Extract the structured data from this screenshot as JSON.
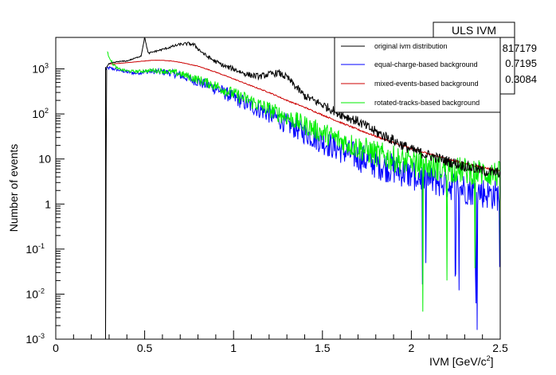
{
  "chart_data": {
    "type": "line",
    "xlabel": "IVM [GeV/c",
    "xlabel_sup": "2",
    "xlabel_tail": "]",
    "ylabel": "Number of events",
    "xlim": [
      0,
      2.5
    ],
    "ylim": [
      0.001,
      5000
    ],
    "yscale": "log",
    "x_ticks": [
      "0",
      "0.5",
      "1",
      "1.5",
      "2",
      "2.5"
    ],
    "y_ticks": [
      {
        "base": "10",
        "exp": "-3"
      },
      {
        "base": "10",
        "exp": "-2"
      },
      {
        "base": "10",
        "exp": "-1"
      },
      {
        "base": "1",
        "exp": ""
      },
      {
        "base": "10",
        "exp": ""
      },
      {
        "base": "10",
        "exp": "2"
      },
      {
        "base": "10",
        "exp": "3"
      }
    ],
    "legend_position": "top-right",
    "stats_box": {
      "title": "ULS IVM",
      "values": [
        "817179",
        "0.7195",
        "0.3084"
      ]
    },
    "series": [
      {
        "name": "original ivm distribution",
        "color": "#000000",
        "x": [
          0.28,
          0.285,
          0.3,
          0.35,
          0.4,
          0.45,
          0.48,
          0.5,
          0.52,
          0.55,
          0.6,
          0.65,
          0.7,
          0.75,
          0.78,
          0.8,
          0.85,
          0.9,
          0.95,
          1.0,
          1.05,
          1.1,
          1.15,
          1.2,
          1.25,
          1.3,
          1.35,
          1.4,
          1.5,
          1.6,
          1.7,
          1.8,
          1.9,
          2.0,
          2.1,
          2.2,
          2.3,
          2.4,
          2.45,
          2.5
        ],
        "y": [
          0.001,
          1100,
          1300,
          1450,
          1500,
          1750,
          1950,
          5000,
          2200,
          2400,
          2700,
          3100,
          3500,
          3650,
          3400,
          2800,
          1900,
          1450,
          1150,
          1000,
          820,
          720,
          680,
          760,
          820,
          650,
          400,
          250,
          160,
          100,
          68,
          40,
          26,
          16,
          12,
          9,
          7,
          5.5,
          5,
          5
        ]
      },
      {
        "name": "equal-charge-based background",
        "color": "#0000ff",
        "x": [
          0.28,
          0.3,
          0.35,
          0.4,
          0.45,
          0.5,
          0.55,
          0.6,
          0.65,
          0.7,
          0.8,
          0.9,
          1.0,
          1.1,
          1.2,
          1.3,
          1.4,
          1.5,
          1.6,
          1.7,
          1.8,
          1.9,
          2.0,
          2.1,
          2.2,
          2.3,
          2.4,
          2.5
        ],
        "y": [
          1000,
          1050,
          950,
          850,
          800,
          860,
          880,
          860,
          810,
          720,
          520,
          370,
          230,
          150,
          100,
          60,
          38,
          24,
          16,
          11,
          8,
          6,
          4.5,
          3.5,
          2.8,
          2.2,
          1.8,
          1.5
        ]
      },
      {
        "name": "mixed-events-based background",
        "color": "#cc0000",
        "x": [
          0.3,
          0.33,
          0.4,
          0.5,
          0.55,
          0.6,
          0.65,
          0.7,
          0.8,
          0.9,
          1.0,
          1.1,
          1.2,
          1.3,
          1.4,
          1.5,
          1.6,
          1.7,
          1.8,
          1.9,
          2.0,
          2.1,
          2.2,
          2.3,
          2.4,
          2.5
        ],
        "y": [
          1300,
          1300,
          1370,
          1500,
          1560,
          1550,
          1500,
          1400,
          1150,
          850,
          600,
          420,
          300,
          200,
          140,
          95,
          65,
          45,
          32,
          23,
          17,
          13,
          10,
          8,
          6.5,
          5.5
        ]
      },
      {
        "name": "rotated-tracks-based background",
        "color": "#00ee00",
        "x": [
          0.29,
          0.32,
          0.35,
          0.4,
          0.45,
          0.5,
          0.55,
          0.6,
          0.65,
          0.7,
          0.8,
          0.9,
          1.0,
          1.1,
          1.2,
          1.3,
          1.4,
          1.5,
          1.6,
          1.7,
          1.8,
          1.9,
          2.0,
          2.1,
          2.2,
          2.3,
          2.4,
          2.5
        ],
        "y": [
          2300,
          1300,
          1000,
          900,
          880,
          900,
          920,
          900,
          850,
          780,
          580,
          420,
          280,
          190,
          125,
          85,
          57,
          38,
          26,
          18,
          13,
          10,
          8,
          7,
          6,
          5.5,
          5,
          4.5
        ]
      }
    ]
  }
}
